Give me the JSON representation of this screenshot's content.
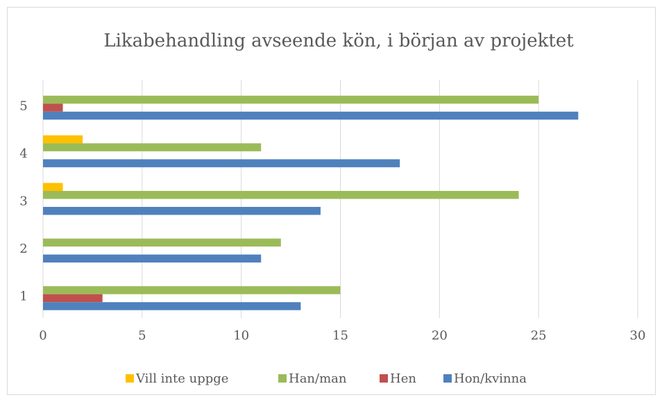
{
  "chart_data": {
    "type": "hbar",
    "title": "Likabehandling avseende kön, i början av projektet",
    "categories": [
      "1",
      "2",
      "3",
      "4",
      "5"
    ],
    "series": [
      {
        "name": "Vill inte uppge",
        "color": "#FFC000",
        "values": [
          0,
          0,
          1,
          2,
          0
        ]
      },
      {
        "name": "Han/man",
        "color": "#9BBB59",
        "values": [
          15,
          12,
          24,
          11,
          25
        ]
      },
      {
        "name": "Hen",
        "color": "#C0504D",
        "values": [
          3,
          0,
          0,
          0,
          1
        ]
      },
      {
        "name": "Hon/kvinna",
        "color": "#4F81BD",
        "values": [
          13,
          11,
          14,
          18,
          27
        ]
      }
    ],
    "xlim": [
      0,
      30
    ],
    "xticks": [
      0,
      5,
      10,
      15,
      20,
      25,
      30
    ],
    "grid": true,
    "legend": "bottom"
  }
}
